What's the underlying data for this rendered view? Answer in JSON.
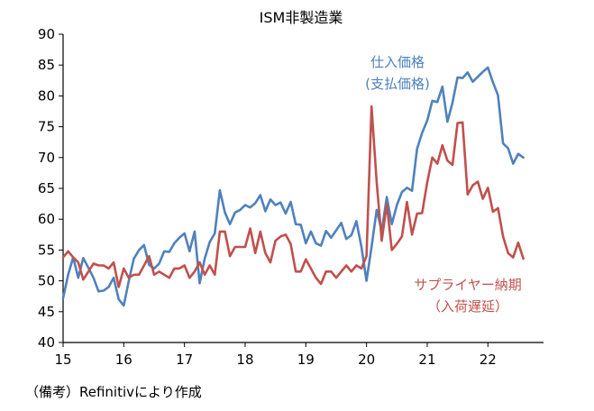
{
  "colors": {
    "prices_paid": "#4f81bd",
    "supplier_deliveries": "#c0504d",
    "axis": "#000000"
  },
  "source_note": "（備考）Refinitivにより作成",
  "chart_data": {
    "type": "line",
    "title": "ISM非製造業",
    "xlabel": "",
    "ylabel": "",
    "ylim": [
      40,
      90
    ],
    "yticks": [
      40,
      45,
      50,
      55,
      60,
      65,
      70,
      75,
      80,
      85,
      90
    ],
    "xlim": [
      0,
      95
    ],
    "xticks": [
      0,
      12,
      24,
      36,
      48,
      60,
      72,
      84
    ],
    "xtick_labels": [
      "15",
      "16",
      "17",
      "18",
      "19",
      "20",
      "21",
      "22"
    ],
    "grid": false,
    "series": [
      {
        "name": "prices_paid",
        "label_lines": [
          "仕入価格",
          "(支払価格)"
        ],
        "color": "#4f81bd",
        "x_start": 0,
        "values": [
          47.2,
          51.0,
          53.8,
          50.5,
          53.7,
          52.1,
          50.5,
          48.3,
          48.4,
          49.0,
          50.5,
          47.0,
          46.0,
          50.0,
          53.6,
          55.0,
          55.8,
          52.6,
          52.0,
          52.8,
          54.8,
          54.7,
          56.1,
          57.0,
          57.7,
          54.8,
          58.0,
          49.6,
          53.6,
          56.3,
          57.7,
          64.7,
          61.1,
          59.2,
          61.1,
          61.5,
          62.3,
          61.9,
          62.6,
          63.9,
          61.3,
          63.2,
          62.3,
          62.7,
          60.9,
          62.8,
          59.2,
          59.1,
          56.1,
          58.0,
          56.1,
          55.7,
          58.1,
          57.0,
          58.2,
          59.4,
          56.8,
          57.4,
          59.7,
          55.5,
          50.0,
          55.5,
          61.5,
          58.1,
          63.6,
          59.2,
          62.3,
          64.4,
          65.1,
          64.6,
          71.4,
          74.0,
          76.0,
          79.2,
          79.0,
          81.5,
          75.8,
          78.9,
          83.0,
          82.9,
          83.8,
          82.3,
          83.1,
          83.9,
          84.6,
          82.2,
          80.1,
          72.3,
          71.5,
          69.0,
          70.6,
          70.0
        ]
      },
      {
        "name": "supplier_deliveries",
        "label_lines": [
          "サプライヤー納期",
          "（入荷遅延）"
        ],
        "color": "#c0504d",
        "x_start": 0,
        "values": [
          53.8,
          54.8,
          53.8,
          53.0,
          50.2,
          51.5,
          52.8,
          52.5,
          52.5,
          52.0,
          53.0,
          49.0,
          52.0,
          50.5,
          51.0,
          51.0,
          52.5,
          54.0,
          51.0,
          51.5,
          51.0,
          50.5,
          52.0,
          52.0,
          52.5,
          50.5,
          51.5,
          53.0,
          51.0,
          52.5,
          51.0,
          58.0,
          58.0,
          54.0,
          55.5,
          55.5,
          55.5,
          58.5,
          54.5,
          58.0,
          54.5,
          53.0,
          56.5,
          57.2,
          57.5,
          56.0,
          51.5,
          51.5,
          53.5,
          52.0,
          50.5,
          49.5,
          51.5,
          51.5,
          50.5,
          51.5,
          52.5,
          51.5,
          52.5,
          52.0,
          54.0,
          78.3,
          66.0,
          56.5,
          62.5,
          55.0,
          56.0,
          57.2,
          62.8,
          57.5,
          60.9,
          61.0,
          66.0,
          70.0,
          69.0,
          72.0,
          69.5,
          68.8,
          75.6,
          75.7,
          64.0,
          65.5,
          66.1,
          63.3,
          65.1,
          61.2,
          61.8,
          57.2,
          54.5,
          53.8,
          56.2,
          53.6
        ]
      }
    ]
  }
}
